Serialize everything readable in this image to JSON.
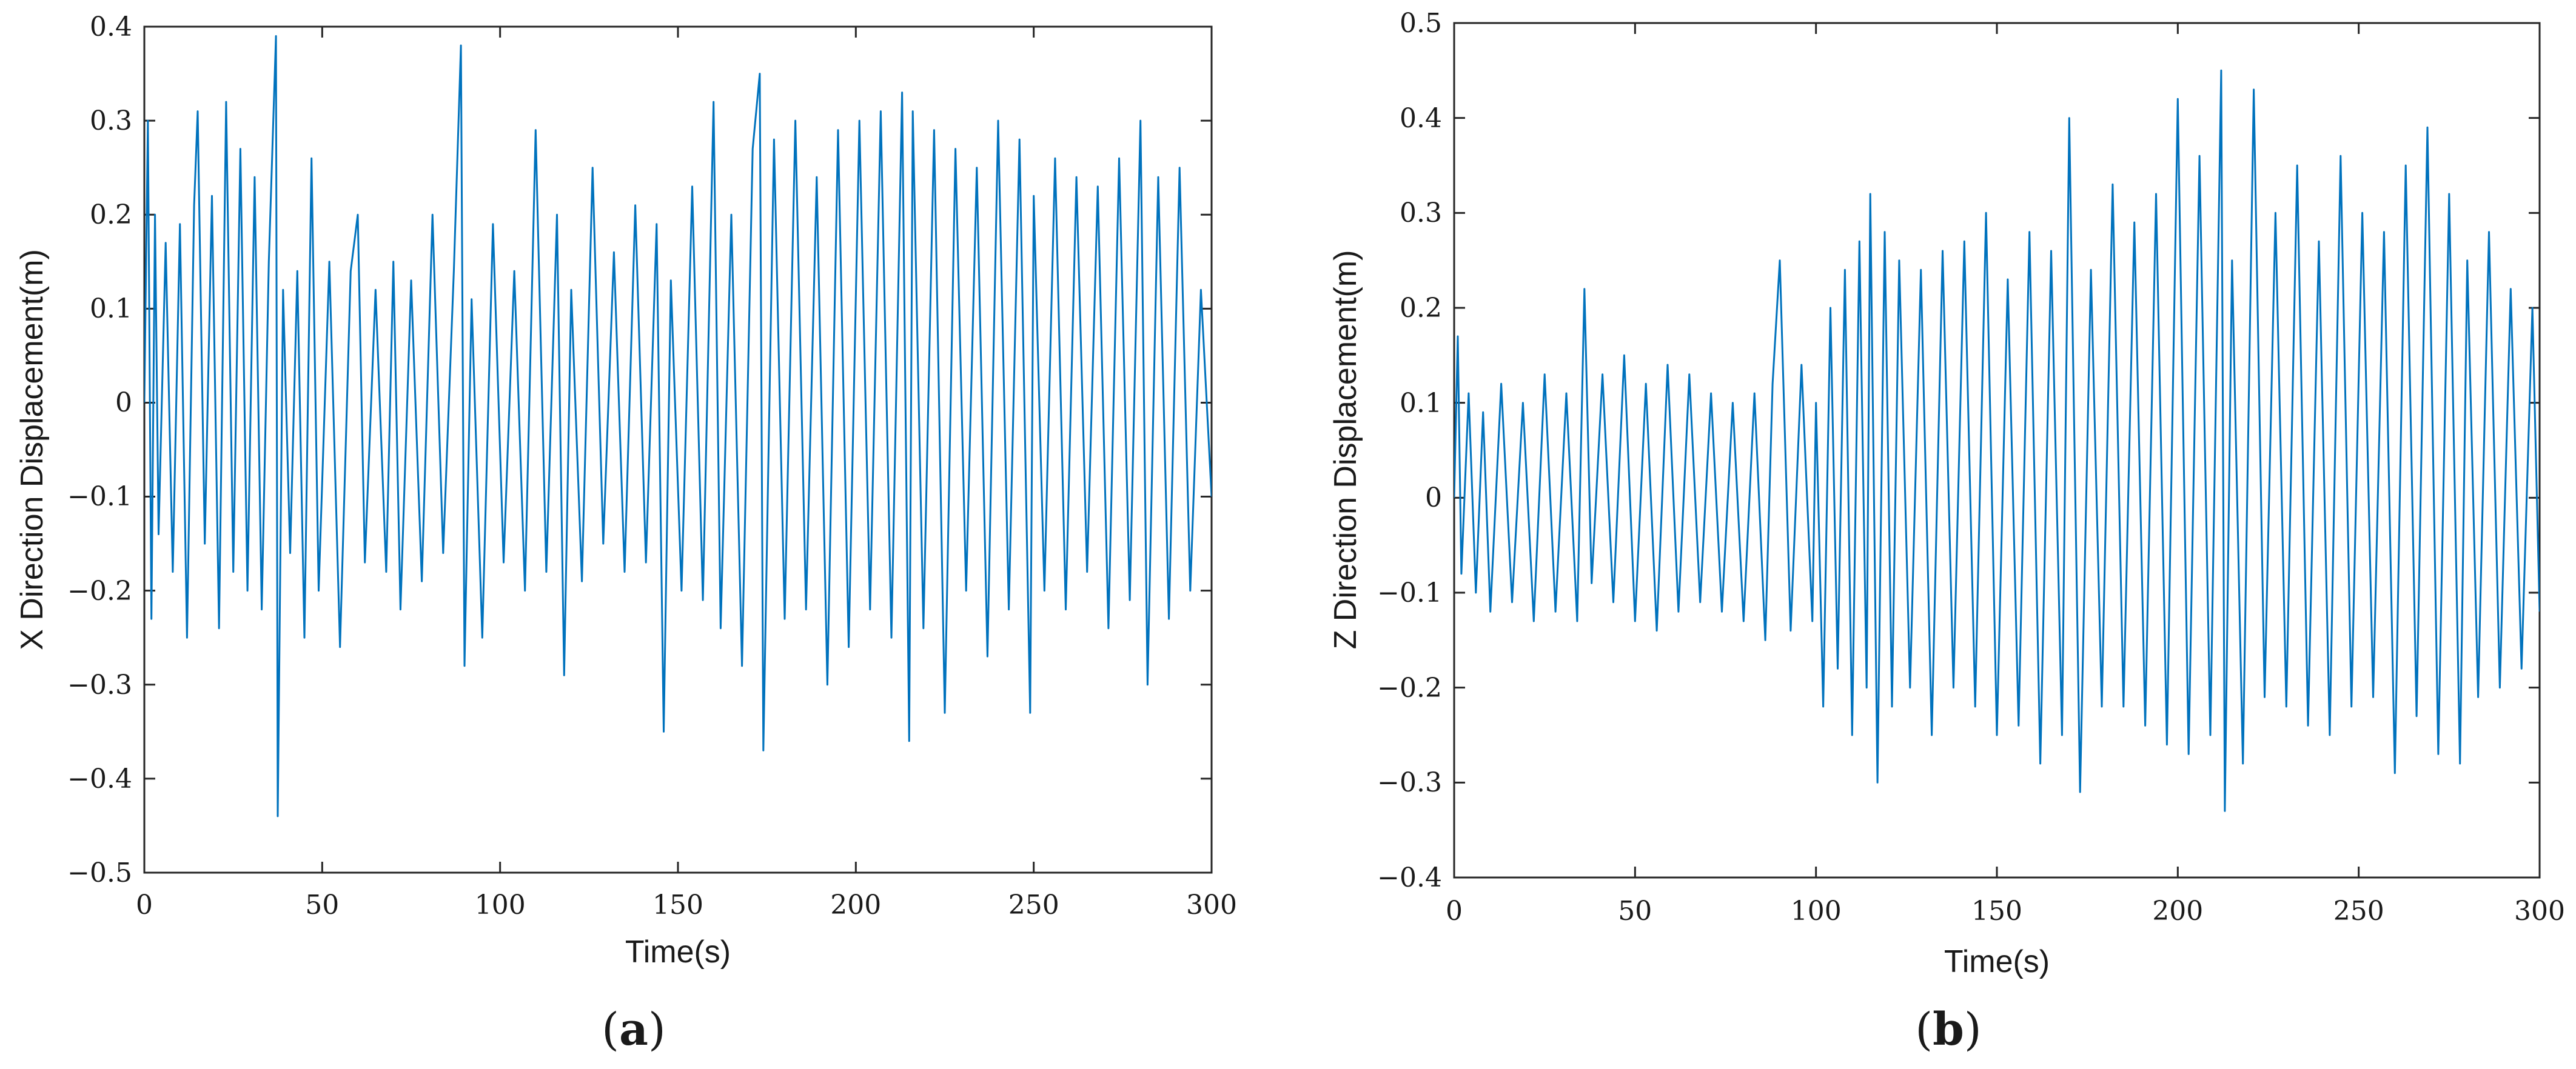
{
  "chart_data": [
    {
      "type": "line",
      "panel_label": "(a)",
      "panel_letter": "a",
      "xlabel": "Time(s)",
      "ylabel": "X Direction Displacement(m)",
      "xlim": [
        0,
        300
      ],
      "ylim": [
        -0.5,
        0.4
      ],
      "xticks": [
        "0",
        "50",
        "100",
        "150",
        "200",
        "250",
        "300"
      ],
      "xtick_values": [
        0,
        50,
        100,
        150,
        200,
        250,
        300
      ],
      "yticks": [
        "0.4",
        "0.3",
        "0.2",
        "0.1",
        "0",
        "−0.1",
        "−0.2",
        "−0.3",
        "−0.4",
        "−0.5"
      ],
      "ytick_values": [
        0.4,
        0.3,
        0.2,
        0.1,
        0,
        -0.1,
        -0.2,
        -0.3,
        -0.4,
        -0.5
      ],
      "grid": false,
      "line_color": "#0072BD",
      "series": [
        {
          "x": [
            0,
            1,
            2,
            3,
            4,
            6,
            8,
            10,
            12,
            14,
            15,
            17,
            19,
            21,
            23,
            25,
            27,
            29,
            31,
            33,
            35,
            37,
            37.5,
            39,
            41,
            43,
            45,
            47,
            49,
            52,
            55,
            58,
            60,
            62,
            65,
            68,
            70,
            72,
            75,
            78,
            81,
            84,
            87,
            89,
            90,
            92,
            95,
            98,
            101,
            104,
            107,
            110,
            113,
            116,
            118,
            120,
            123,
            126,
            129,
            132,
            135,
            138,
            141,
            144,
            146,
            148,
            151,
            154,
            157,
            160,
            162,
            165,
            168,
            171,
            173,
            174,
            177,
            180,
            183,
            186,
            189,
            192,
            195,
            198,
            201,
            204,
            207,
            210,
            213,
            215,
            216,
            219,
            222,
            225,
            228,
            231,
            234,
            237,
            240,
            243,
            246,
            249,
            250,
            253,
            256,
            259,
            262,
            265,
            268,
            271,
            274,
            277,
            280,
            282,
            285,
            288,
            291,
            294,
            297,
            300
          ],
          "values": [
            0.0,
            0.3,
            -0.23,
            0.2,
            -0.14,
            0.17,
            -0.18,
            0.19,
            -0.25,
            0.21,
            0.31,
            -0.15,
            0.22,
            -0.24,
            0.32,
            -0.18,
            0.27,
            -0.2,
            0.24,
            -0.22,
            0.15,
            0.39,
            -0.44,
            0.12,
            -0.16,
            0.14,
            -0.25,
            0.26,
            -0.2,
            0.15,
            -0.26,
            0.14,
            0.2,
            -0.17,
            0.12,
            -0.18,
            0.15,
            -0.22,
            0.13,
            -0.19,
            0.2,
            -0.16,
            0.14,
            0.38,
            -0.28,
            0.11,
            -0.25,
            0.19,
            -0.17,
            0.14,
            -0.2,
            0.29,
            -0.18,
            0.2,
            -0.29,
            0.12,
            -0.19,
            0.25,
            -0.15,
            0.16,
            -0.18,
            0.21,
            -0.17,
            0.19,
            -0.35,
            0.13,
            -0.2,
            0.23,
            -0.21,
            0.32,
            -0.24,
            0.2,
            -0.28,
            0.27,
            0.35,
            -0.37,
            0.28,
            -0.23,
            0.3,
            -0.22,
            0.24,
            -0.3,
            0.29,
            -0.26,
            0.3,
            -0.22,
            0.31,
            -0.25,
            0.33,
            -0.36,
            0.31,
            -0.24,
            0.29,
            -0.33,
            0.27,
            -0.2,
            0.25,
            -0.27,
            0.3,
            -0.22,
            0.28,
            -0.33,
            0.22,
            -0.2,
            0.26,
            -0.22,
            0.24,
            -0.18,
            0.23,
            -0.24,
            0.26,
            -0.21,
            0.3,
            -0.3,
            0.24,
            -0.23,
            0.25,
            -0.2,
            0.12,
            -0.1
          ]
        }
      ]
    },
    {
      "type": "line",
      "panel_label": "(b)",
      "panel_letter": "b",
      "xlabel": "Time(s)",
      "ylabel": "Z Direction Displacement(m)",
      "xlim": [
        0,
        300
      ],
      "ylim": [
        -0.4,
        0.5
      ],
      "xticks": [
        "0",
        "50",
        "100",
        "150",
        "200",
        "250",
        "300"
      ],
      "xtick_values": [
        0,
        50,
        100,
        150,
        200,
        250,
        300
      ],
      "yticks": [
        "0.5",
        "0.4",
        "0.3",
        "0.2",
        "0.1",
        "0",
        "−0.1",
        "−0.2",
        "−0.3",
        "−0.4"
      ],
      "ytick_values": [
        0.5,
        0.4,
        0.3,
        0.2,
        0.1,
        0,
        -0.1,
        -0.2,
        -0.3,
        -0.4
      ],
      "grid": false,
      "line_color": "#0072BD",
      "series": [
        {
          "x": [
            0,
            1,
            2,
            4,
            6,
            8,
            10,
            13,
            16,
            19,
            22,
            25,
            28,
            31,
            34,
            36,
            38,
            41,
            44,
            47,
            50,
            53,
            56,
            59,
            62,
            65,
            68,
            71,
            74,
            77,
            80,
            83,
            86,
            88,
            90,
            93,
            96,
            99,
            100,
            102,
            104,
            106,
            108,
            110,
            112,
            114,
            115,
            117,
            119,
            121,
            123,
            126,
            129,
            132,
            135,
            138,
            141,
            144,
            147,
            150,
            153,
            156,
            159,
            162,
            165,
            168,
            170,
            173,
            176,
            179,
            182,
            185,
            188,
            191,
            194,
            197,
            200,
            203,
            206,
            209,
            212,
            213,
            215,
            218,
            221,
            224,
            227,
            230,
            233,
            236,
            239,
            242,
            245,
            248,
            251,
            254,
            257,
            260,
            263,
            266,
            269,
            272,
            275,
            278,
            280,
            283,
            286,
            289,
            292,
            295,
            298,
            300
          ],
          "values": [
            0.0,
            0.17,
            -0.08,
            0.11,
            -0.1,
            0.09,
            -0.12,
            0.12,
            -0.11,
            0.1,
            -0.13,
            0.13,
            -0.12,
            0.11,
            -0.13,
            0.22,
            -0.09,
            0.13,
            -0.11,
            0.15,
            -0.13,
            0.12,
            -0.14,
            0.14,
            -0.12,
            0.13,
            -0.11,
            0.11,
            -0.12,
            0.1,
            -0.13,
            0.11,
            -0.15,
            0.12,
            0.25,
            -0.14,
            0.14,
            -0.13,
            0.1,
            -0.22,
            0.2,
            -0.18,
            0.24,
            -0.25,
            0.27,
            -0.2,
            0.32,
            -0.3,
            0.28,
            -0.22,
            0.25,
            -0.2,
            0.24,
            -0.25,
            0.26,
            -0.2,
            0.27,
            -0.22,
            0.3,
            -0.25,
            0.23,
            -0.24,
            0.28,
            -0.28,
            0.26,
            -0.25,
            0.4,
            -0.31,
            0.24,
            -0.22,
            0.33,
            -0.22,
            0.29,
            -0.24,
            0.32,
            -0.26,
            0.42,
            -0.27,
            0.36,
            -0.25,
            0.45,
            -0.33,
            0.25,
            -0.28,
            0.43,
            -0.21,
            0.3,
            -0.22,
            0.35,
            -0.24,
            0.27,
            -0.25,
            0.36,
            -0.22,
            0.3,
            -0.21,
            0.28,
            -0.29,
            0.35,
            -0.23,
            0.39,
            -0.27,
            0.32,
            -0.28,
            0.25,
            -0.21,
            0.28,
            -0.2,
            0.22,
            -0.18,
            0.2,
            -0.12
          ]
        }
      ]
    }
  ]
}
